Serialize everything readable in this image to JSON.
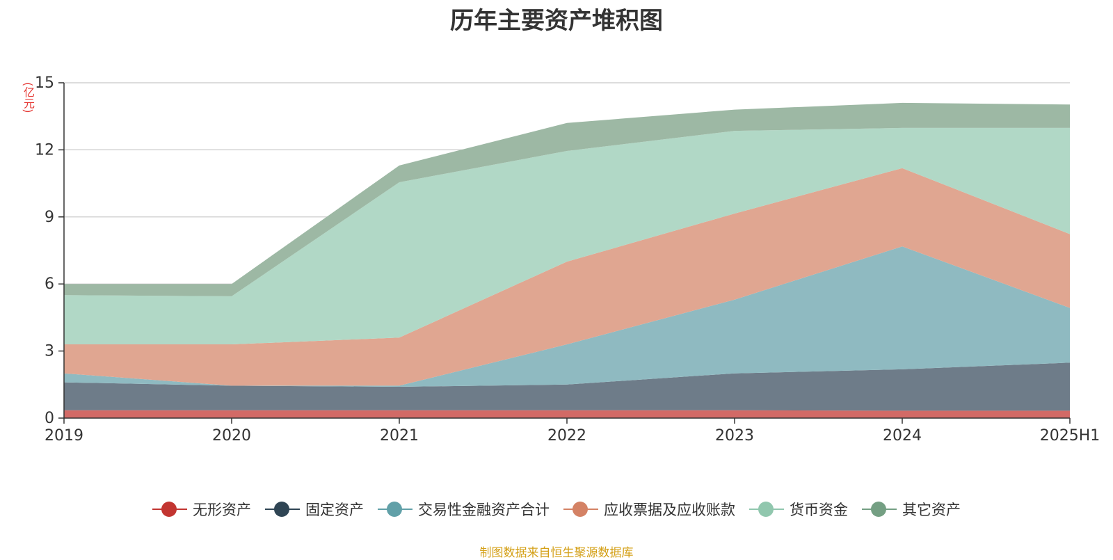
{
  "chart_data": {
    "type": "area",
    "stacked": true,
    "title": "历年主要资产堆积图",
    "unit": "(亿元)",
    "categories": [
      "2019",
      "2020",
      "2021",
      "2022",
      "2023",
      "2024",
      "2025H1"
    ],
    "ylim": [
      0,
      15
    ],
    "yticks": [
      0,
      3,
      6,
      9,
      12,
      15
    ],
    "grid": true,
    "legend_position": "bottom",
    "series": [
      {
        "name": "无形资产",
        "color": "#c23531",
        "fill": "#d26a66",
        "values": [
          0.35,
          0.35,
          0.35,
          0.35,
          0.35,
          0.33,
          0.33
        ]
      },
      {
        "name": "固定资产",
        "color": "#2f4554",
        "fill": "#6e7c89",
        "values": [
          1.25,
          1.1,
          1.05,
          1.15,
          1.65,
          1.85,
          2.15
        ]
      },
      {
        "name": "交易性金融资产合计",
        "color": "#61a0a8",
        "fill": "#8fbac1",
        "values": [
          0.4,
          0.0,
          0.05,
          1.8,
          3.3,
          5.5,
          2.45
        ]
      },
      {
        "name": "应收票据及应收账款",
        "color": "#d48265",
        "fill": "#e0a691",
        "values": [
          1.3,
          1.85,
          2.15,
          3.7,
          3.85,
          3.5,
          3.3
        ]
      },
      {
        "name": "货币资金",
        "color": "#91c7ae",
        "fill": "#b1d8c6",
        "values": [
          2.2,
          2.15,
          6.95,
          4.95,
          3.7,
          1.8,
          4.75
        ]
      },
      {
        "name": "其它资产",
        "color": "#749f83",
        "fill": "#9db8a4",
        "values": [
          0.5,
          0.55,
          0.75,
          1.25,
          0.95,
          1.12,
          1.05
        ]
      }
    ]
  },
  "source_note": "制图数据来自恒生聚源数据库"
}
